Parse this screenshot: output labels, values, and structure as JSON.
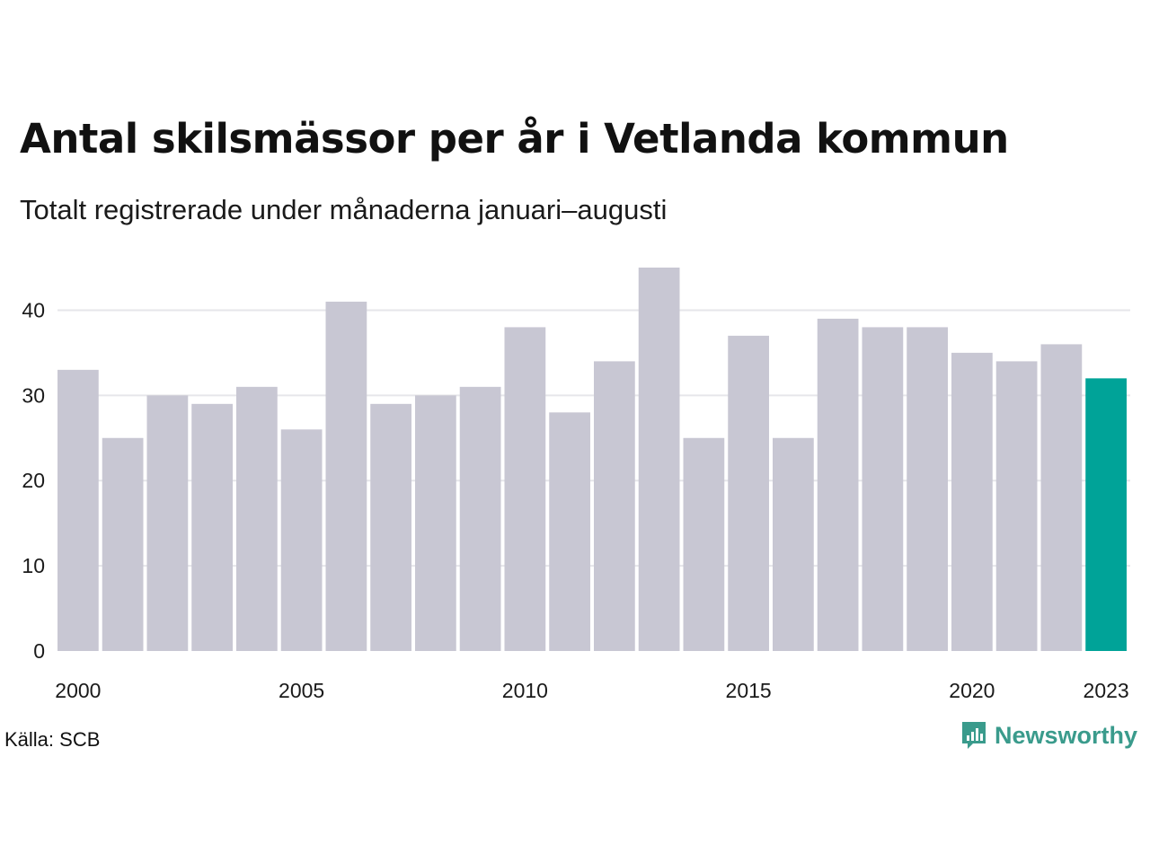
{
  "title": "Antal skilsmässor per år i Vetlanda kommun",
  "subtitle": "Totalt registrerade under månaderna januari–augusti",
  "source": "Källa: SCB",
  "brand": {
    "name": "Newsworthy",
    "icon": "newsworthy-logo-icon",
    "color": "#3a9b8c"
  },
  "colors": {
    "bar": "#c8c7d3",
    "highlight": "#00a398",
    "grid": "#e6e6ea"
  },
  "chart_data": {
    "type": "bar",
    "categories": [
      "2000",
      "2001",
      "2002",
      "2003",
      "2004",
      "2005",
      "2006",
      "2007",
      "2008",
      "2009",
      "2010",
      "2011",
      "2012",
      "2013",
      "2014",
      "2015",
      "2016",
      "2017",
      "2018",
      "2019",
      "2020",
      "2021",
      "2022",
      "2023"
    ],
    "values": [
      33,
      25,
      30,
      29,
      31,
      26,
      41,
      29,
      30,
      31,
      38,
      28,
      34,
      45,
      25,
      37,
      25,
      39,
      38,
      38,
      35,
      34,
      36,
      32
    ],
    "highlight_category": "2023",
    "x_tick_labels": [
      "2000",
      "2005",
      "2010",
      "2015",
      "2020",
      "2023"
    ],
    "y_ticks": [
      0,
      10,
      20,
      30,
      40
    ],
    "ylim": [
      0,
      45
    ],
    "grid": true,
    "title": "Antal skilsmässor per år i Vetlanda kommun",
    "xlabel": "",
    "ylabel": ""
  }
}
